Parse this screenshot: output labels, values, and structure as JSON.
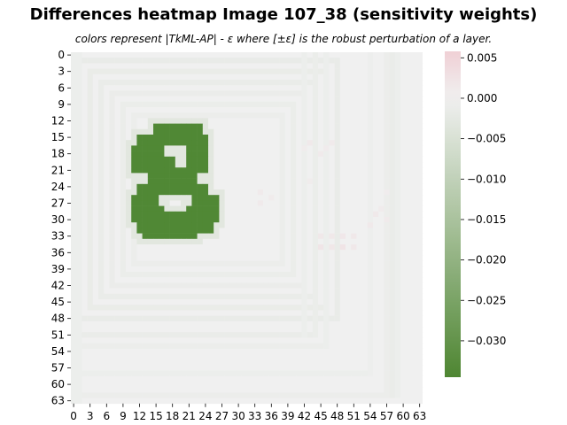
{
  "chart_data": {
    "type": "heatmap",
    "title": "Differences heatmap Image 107_38 (sensitivity weights)",
    "subtitle": "colors represent |TkML-AP| - ε where [±ε] is the robust perturbation of a layer.",
    "grid_size": [
      64,
      64
    ],
    "x_tick_labels": [
      "0",
      "3",
      "6",
      "9",
      "12",
      "15",
      "18",
      "21",
      "24",
      "27",
      "30",
      "33",
      "36",
      "39",
      "42",
      "45",
      "48",
      "51",
      "54",
      "57",
      "60",
      "63"
    ],
    "y_tick_labels": [
      "0",
      "3",
      "6",
      "9",
      "12",
      "15",
      "18",
      "21",
      "24",
      "27",
      "30",
      "33",
      "36",
      "39",
      "42",
      "45",
      "48",
      "51",
      "54",
      "57",
      "60",
      "63"
    ],
    "colorbar": {
      "min": -0.0345,
      "max": 0.0058,
      "ticks": [
        0.005,
        0.0,
        -0.005,
        -0.01,
        -0.015,
        -0.02,
        -0.025,
        -0.03
      ],
      "tick_labels": [
        "0.005",
        "0.000",
        "−0.005",
        "−0.010",
        "−0.015",
        "−0.020",
        "−0.025",
        "−0.030"
      ],
      "colors": {
        "negative": "#4e8632",
        "zero": "#f0f0f0",
        "positive": "#f0d0d5"
      }
    },
    "background_value": 0.0,
    "frame_value": -0.0015,
    "digit_value": -0.034,
    "digit": "8",
    "digit_region": {
      "rows": [
        13,
        33
      ],
      "cols": [
        11,
        26
      ]
    },
    "positive_speckles": [
      {
        "row": 16,
        "col": 43,
        "value": 0.0012
      },
      {
        "row": 16,
        "col": 47,
        "value": 0.001
      },
      {
        "row": 17,
        "col": 42,
        "value": 0.0008
      },
      {
        "row": 17,
        "col": 46,
        "value": 0.0009
      },
      {
        "row": 18,
        "col": 45,
        "value": 0.0011
      },
      {
        "row": 25,
        "col": 34,
        "value": 0.001
      },
      {
        "row": 26,
        "col": 36,
        "value": 0.0009
      },
      {
        "row": 27,
        "col": 34,
        "value": 0.0011
      },
      {
        "row": 28,
        "col": 56,
        "value": 0.0009
      },
      {
        "row": 29,
        "col": 55,
        "value": 0.0012
      },
      {
        "row": 30,
        "col": 57,
        "value": 0.001
      },
      {
        "row": 31,
        "col": 54,
        "value": 0.0013
      },
      {
        "row": 33,
        "col": 45,
        "value": 0.0015
      },
      {
        "row": 33,
        "col": 47,
        "value": 0.0014
      },
      {
        "row": 33,
        "col": 49,
        "value": 0.0016
      },
      {
        "row": 33,
        "col": 51,
        "value": 0.0015
      },
      {
        "row": 35,
        "col": 45,
        "value": 0.002
      },
      {
        "row": 35,
        "col": 47,
        "value": 0.0017
      },
      {
        "row": 35,
        "col": 49,
        "value": 0.0021
      },
      {
        "row": 35,
        "col": 51,
        "value": 0.0014
      },
      {
        "row": 23,
        "col": 43,
        "value": 0.0008
      },
      {
        "row": 25,
        "col": 57,
        "value": 0.0007
      }
    ]
  }
}
